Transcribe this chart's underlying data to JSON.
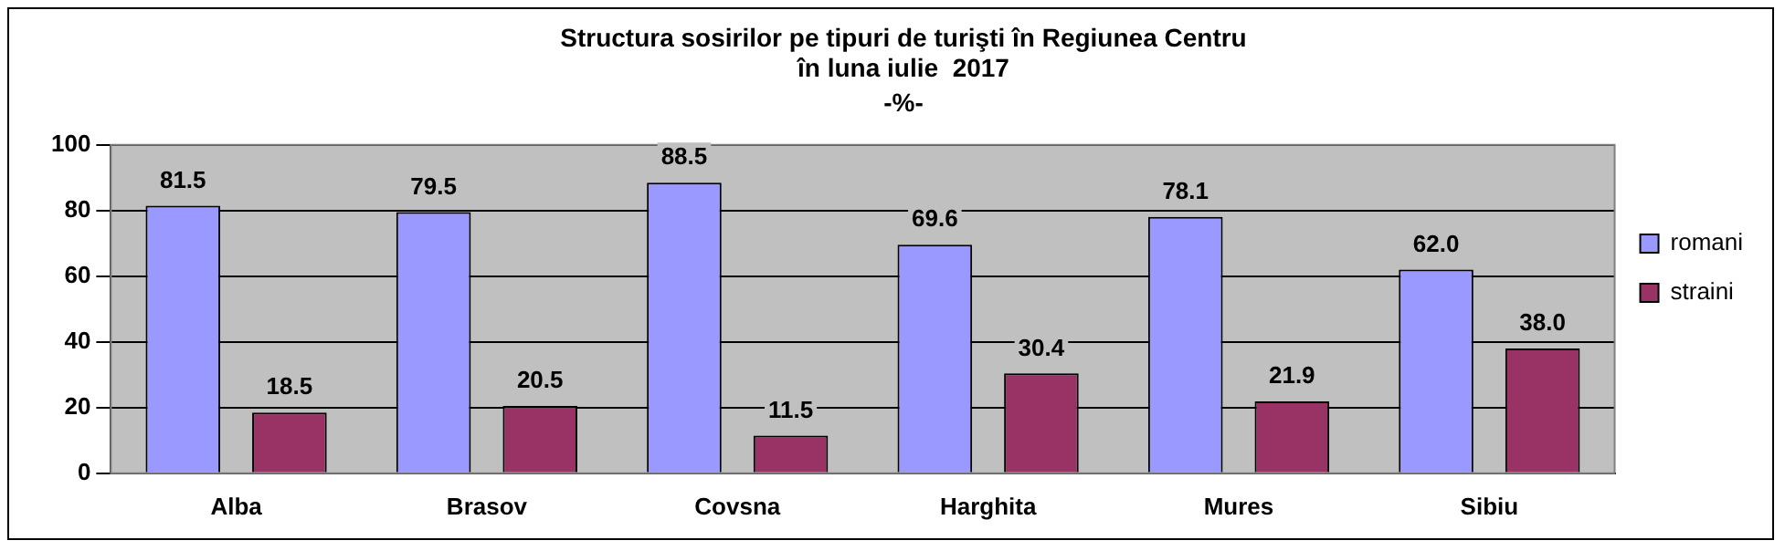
{
  "chart_data": {
    "type": "bar",
    "title": "Structura sosirilor pe tipuri de turişti în Regiunea Centru\nîn luna iulie  2017",
    "subtitle": "-%-",
    "categories": [
      "Alba",
      "Brasov",
      "Covsna",
      "Harghita",
      "Mures",
      "Sibiu"
    ],
    "series": [
      {
        "name": "romani",
        "color": "#9999ff",
        "values": [
          81.5,
          79.5,
          88.5,
          69.6,
          78.1,
          62.0
        ],
        "value_labels": [
          "81.5",
          "79.5",
          "88.5",
          "69.6",
          "78.1",
          "62.0"
        ]
      },
      {
        "name": "straini",
        "color": "#993366",
        "values": [
          18.5,
          20.5,
          11.5,
          30.4,
          21.9,
          38.0
        ],
        "value_labels": [
          "18.5",
          "20.5",
          "11.5",
          "30.4",
          "21.9",
          "38.0"
        ]
      }
    ],
    "ylim": [
      0,
      100
    ],
    "yticks": [
      0,
      20,
      40,
      60,
      80,
      100
    ],
    "grid": "y",
    "legend": "right"
  }
}
